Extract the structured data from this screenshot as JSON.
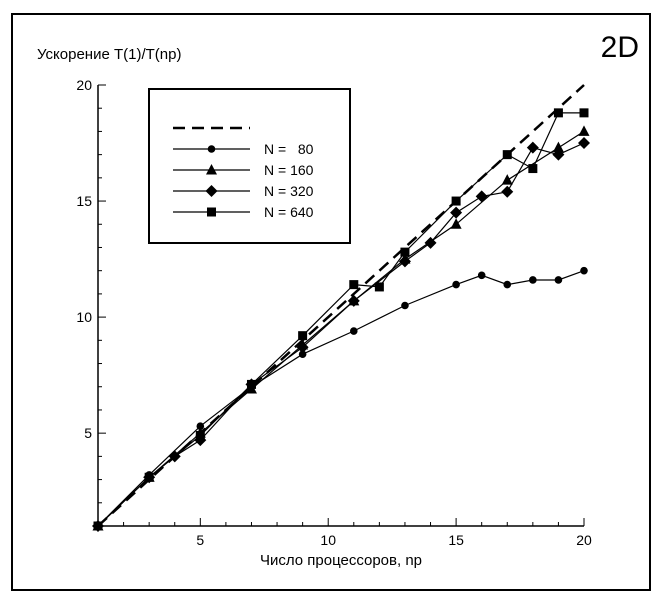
{
  "chart_data": {
    "type": "line",
    "panel_label": "2D",
    "title": "",
    "ylabel": "Ускорение T(1)/T(np)",
    "xlabel": "Число процессоров, np",
    "xlim": [
      1,
      20
    ],
    "ylim": [
      1,
      20
    ],
    "xticks": [
      5,
      10,
      15,
      20
    ],
    "yticks": [
      5,
      10,
      15,
      20
    ],
    "grid": false,
    "legend_placement": "top-left",
    "series": [
      {
        "name": "",
        "style": "dashed",
        "marker": "none",
        "x": [
          1,
          20
        ],
        "y": [
          1,
          20
        ]
      },
      {
        "name": "N =   80",
        "style": "solid",
        "marker": "circle",
        "x": [
          1,
          3,
          5,
          7,
          9,
          11,
          13,
          15,
          16,
          17,
          18,
          19,
          20
        ],
        "y": [
          1,
          3.2,
          5.3,
          7.0,
          8.4,
          9.4,
          10.5,
          11.4,
          11.8,
          11.4,
          11.6,
          11.6,
          12.0
        ]
      },
      {
        "name": "N = 160",
        "style": "solid",
        "marker": "triangle",
        "x": [
          1,
          3,
          5,
          7,
          9,
          11,
          13,
          15,
          17,
          19,
          20
        ],
        "y": [
          1,
          3.1,
          5.0,
          6.9,
          8.8,
          10.7,
          12.5,
          14.0,
          15.9,
          17.3,
          18.0
        ]
      },
      {
        "name": "N = 320",
        "style": "solid",
        "marker": "diamond",
        "x": [
          1,
          3,
          4,
          5,
          7,
          9,
          11,
          13,
          14,
          15,
          16,
          17,
          18,
          19,
          20
        ],
        "y": [
          1,
          3.1,
          4.0,
          4.7,
          7.1,
          8.7,
          10.7,
          12.4,
          13.2,
          14.5,
          15.2,
          15.4,
          17.3,
          17.0,
          17.5
        ]
      },
      {
        "name": "N = 640",
        "style": "solid",
        "marker": "square",
        "x": [
          1,
          3,
          5,
          7,
          9,
          11,
          12,
          13,
          15,
          17,
          18,
          19,
          20
        ],
        "y": [
          1,
          3.1,
          4.9,
          7.1,
          9.2,
          11.4,
          11.3,
          12.8,
          15.0,
          17.0,
          16.4,
          18.8,
          18.8
        ]
      }
    ]
  }
}
